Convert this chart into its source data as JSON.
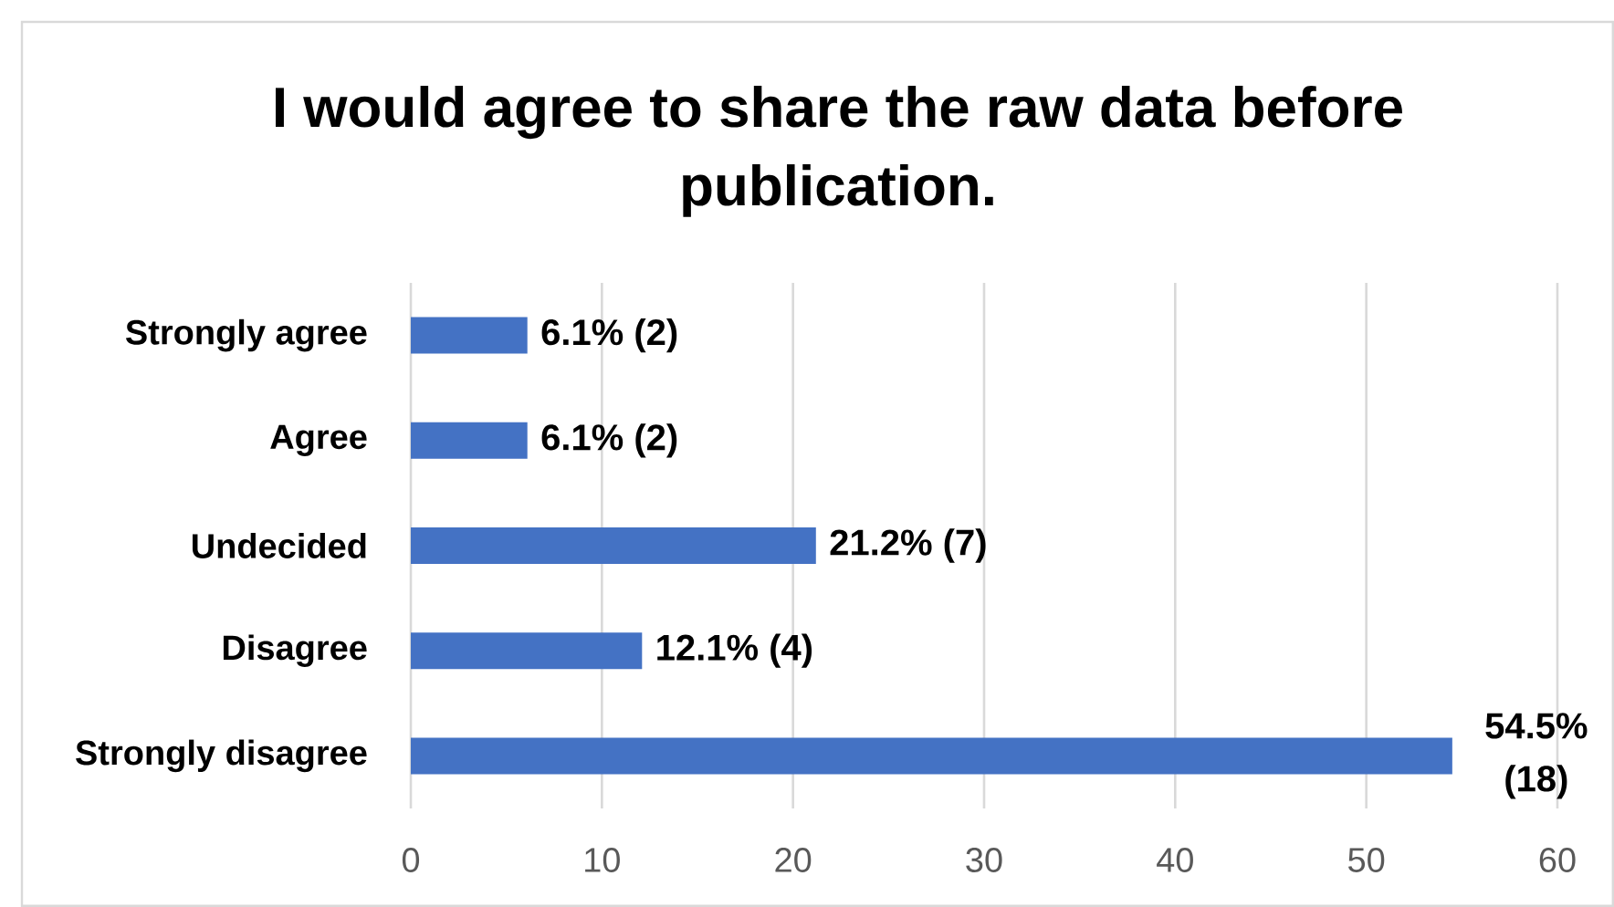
{
  "chart_data": {
    "type": "bar",
    "orientation": "horizontal",
    "title": "I would agree to share the raw data before publication.",
    "categories": [
      "Strongly agree",
      "Agree",
      "Undecided",
      "Disagree",
      "Strongly disagree"
    ],
    "values": [
      6.1,
      6.1,
      21.2,
      12.1,
      54.5
    ],
    "value_labels": [
      "6.1% (2)",
      "6.1% (2)",
      "21.2% (7)",
      "12.1% (4)",
      "54.5% (18)"
    ],
    "color": "#4472c4",
    "xlim": [
      0,
      60
    ],
    "xticks": [
      0,
      10,
      20,
      30,
      40,
      50,
      60
    ],
    "grid": "x"
  }
}
